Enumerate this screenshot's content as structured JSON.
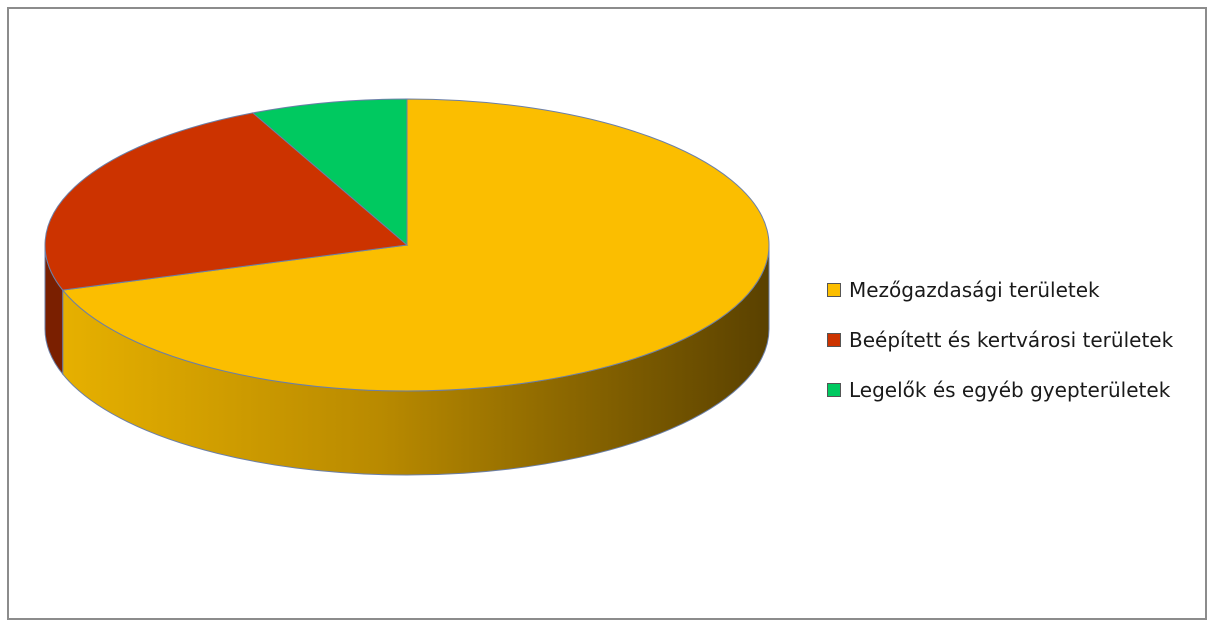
{
  "chart_data": {
    "type": "pie",
    "title": "",
    "slices": [
      {
        "label": "Mezőgazdasági területek",
        "value": 70,
        "color": "#FBBE00"
      },
      {
        "label": "Beépített és kertvárosi területek",
        "value": 23,
        "color": "#CC3300"
      },
      {
        "label": "Legelők és egyéb gyepterületek",
        "value": 7,
        "color": "#00C960"
      }
    ],
    "legend_position": "right",
    "style": "3d"
  }
}
